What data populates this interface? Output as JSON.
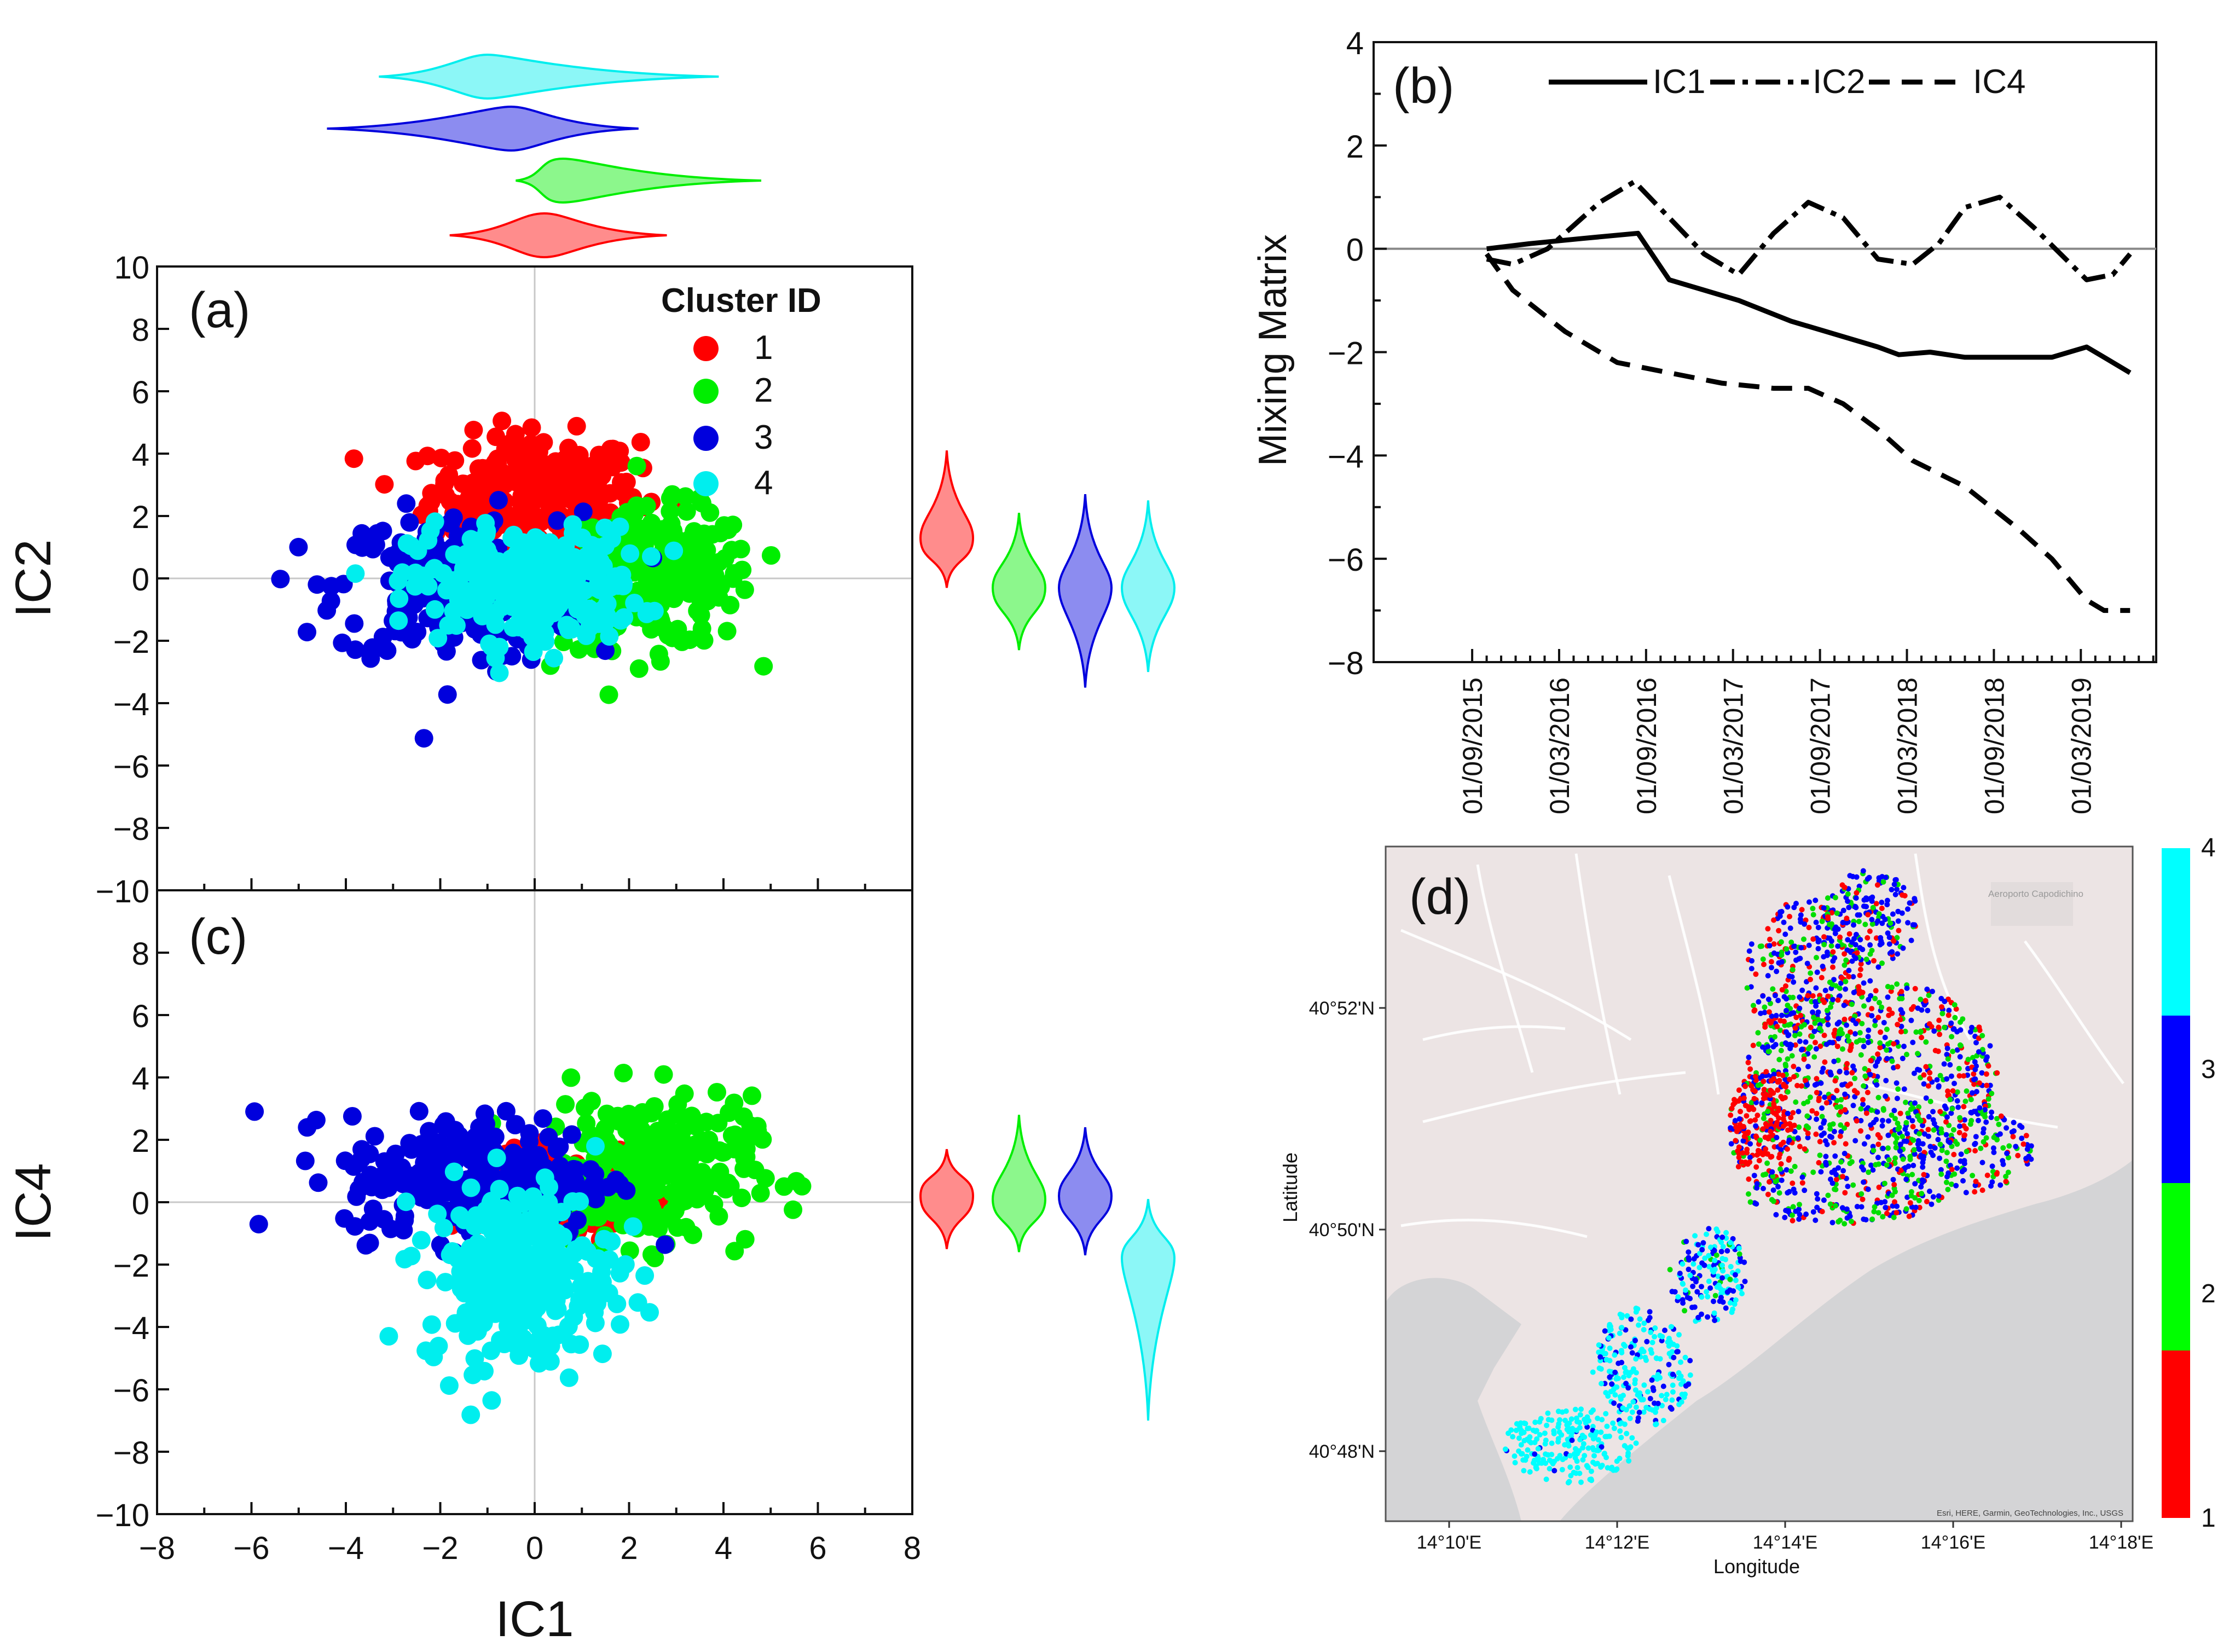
{
  "chart_data": [
    {
      "id": "a",
      "type": "scatter",
      "panel_label": "(a)",
      "xlabel": "",
      "ylabel": "IC2",
      "xlim": [
        -8,
        8
      ],
      "ylim": [
        -10,
        10
      ],
      "yticks": [
        "10",
        "8",
        "6",
        "4",
        "2",
        "0",
        "−2",
        "−4",
        "−6",
        "−8",
        "−10"
      ],
      "legend": {
        "title": "Cluster ID",
        "placement": "top-right",
        "entries": [
          "1",
          "2",
          "3",
          "4"
        ]
      },
      "series": [
        {
          "name": "1",
          "color": "#ff0000",
          "center": [
            0.0,
            2.8
          ],
          "spread": [
            1.1,
            0.9
          ]
        },
        {
          "name": "2",
          "color": "#00ee00",
          "center": [
            2.6,
            0.0
          ],
          "spread": [
            1.0,
            1.1
          ]
        },
        {
          "name": "3",
          "color": "#0000dd",
          "center": [
            -1.6,
            -0.3
          ],
          "spread": [
            1.3,
            1.2
          ]
        },
        {
          "name": "4",
          "color": "#00eeee",
          "center": [
            -0.2,
            -0.2
          ],
          "spread": [
            1.2,
            0.9
          ]
        }
      ],
      "side_violins": [
        {
          "cluster": "1",
          "center": 1.3,
          "range": [
            -0.3,
            4.1
          ]
        },
        {
          "cluster": "2",
          "center": -0.3,
          "range": [
            -2.3,
            2.1
          ]
        },
        {
          "cluster": "3",
          "center": -0.3,
          "range": [
            -3.5,
            2.7
          ]
        },
        {
          "cluster": "4",
          "center": -0.3,
          "range": [
            -3.0,
            2.5
          ]
        }
      ],
      "top_violins": [
        {
          "cluster": "4",
          "center": -1.0,
          "range": [
            -3.3,
            3.9
          ]
        },
        {
          "cluster": "3",
          "center": -0.5,
          "range": [
            -4.4,
            2.2
          ]
        },
        {
          "cluster": "2",
          "center": 0.6,
          "range": [
            -0.4,
            4.8
          ]
        },
        {
          "cluster": "1",
          "center": 0.2,
          "range": [
            -1.8,
            2.8
          ]
        }
      ]
    },
    {
      "id": "c",
      "type": "scatter",
      "panel_label": "(c)",
      "xlabel": "IC1",
      "ylabel": "IC4",
      "xlim": [
        -8,
        8
      ],
      "ylim": [
        -10,
        10
      ],
      "xticks": [
        "−8",
        "−6",
        "−4",
        "−2",
        "0",
        "2",
        "4",
        "6",
        "8"
      ],
      "yticks": [
        "8",
        "6",
        "4",
        "2",
        "0",
        "−2",
        "−4",
        "−6",
        "−8",
        "−10"
      ],
      "series": [
        {
          "name": "1",
          "color": "#ff0000",
          "center": [
            0.5,
            0.3
          ],
          "spread": [
            0.8,
            0.6
          ]
        },
        {
          "name": "2",
          "color": "#00ee00",
          "center": [
            2.4,
            1.0
          ],
          "spread": [
            1.1,
            1.2
          ]
        },
        {
          "name": "3",
          "color": "#0000dd",
          "center": [
            -1.2,
            0.8
          ],
          "spread": [
            1.4,
            1.0
          ]
        },
        {
          "name": "4",
          "color": "#00eeee",
          "center": [
            -0.3,
            -2.3
          ],
          "spread": [
            1.0,
            1.5
          ]
        }
      ],
      "side_violins": [
        {
          "cluster": "1",
          "center": 0.2,
          "range": [
            -1.5,
            1.7
          ]
        },
        {
          "cluster": "2",
          "center": 0.1,
          "range": [
            -1.6,
            2.8
          ]
        },
        {
          "cluster": "3",
          "center": 0.2,
          "range": [
            -1.7,
            2.4
          ]
        },
        {
          "cluster": "4",
          "center": -1.8,
          "range": [
            -7.0,
            0.1
          ]
        }
      ]
    },
    {
      "id": "b",
      "type": "line",
      "panel_label": "(b)",
      "ylabel": "Mixing Matrix",
      "xlabel": "",
      "ylim": [
        -8,
        4
      ],
      "yticks": [
        "4",
        "2",
        "0",
        "−2",
        "−4",
        "−6",
        "−8"
      ],
      "xtick_labels": [
        "01/09/2015",
        "01/03/2016",
        "01/09/2016",
        "01/03/2017",
        "01/09/2017",
        "01/03/2018",
        "01/09/2018",
        "01/03/2019"
      ],
      "x_year_range": [
        2015.1,
        2019.6
      ],
      "legend_entries": [
        "IC1",
        "IC2",
        "IC4"
      ],
      "series": [
        {
          "name": "IC1",
          "style": "solid",
          "x": [
            2015.75,
            2016.0,
            2016.3,
            2016.62,
            2016.8,
            2017.0,
            2017.2,
            2017.5,
            2017.8,
            2018.0,
            2018.12,
            2018.3,
            2018.5,
            2018.8,
            2019.0,
            2019.2,
            2019.3,
            2019.45
          ],
          "y": [
            0.0,
            0.1,
            0.2,
            0.3,
            -0.6,
            -0.8,
            -1.0,
            -1.4,
            -1.7,
            -1.9,
            -2.05,
            -2.0,
            -2.1,
            -2.1,
            -2.1,
            -1.9,
            -2.1,
            -2.4
          ]
        },
        {
          "name": "IC2",
          "style": "dashdot",
          "x": [
            2015.75,
            2015.9,
            2016.1,
            2016.4,
            2016.6,
            2016.8,
            2017.0,
            2017.2,
            2017.4,
            2017.6,
            2017.8,
            2018.0,
            2018.2,
            2018.35,
            2018.5,
            2018.7,
            2018.9,
            2019.05,
            2019.2,
            2019.35,
            2019.45
          ],
          "y": [
            -0.2,
            -0.3,
            0.0,
            0.9,
            1.3,
            0.6,
            -0.1,
            -0.5,
            0.3,
            0.9,
            0.6,
            -0.2,
            -0.3,
            0.1,
            0.8,
            1.0,
            0.4,
            -0.1,
            -0.6,
            -0.5,
            -0.1
          ]
        },
        {
          "name": "IC4",
          "style": "dashed",
          "x": [
            2015.75,
            2015.9,
            2016.2,
            2016.5,
            2016.8,
            2017.1,
            2017.4,
            2017.6,
            2017.8,
            2018.0,
            2018.2,
            2018.5,
            2018.8,
            2019.0,
            2019.2,
            2019.3,
            2019.45
          ],
          "y": [
            -0.1,
            -0.8,
            -1.6,
            -2.2,
            -2.4,
            -2.6,
            -2.7,
            -2.7,
            -3.0,
            -3.5,
            -4.1,
            -4.6,
            -5.4,
            -6.0,
            -6.8,
            -7.0,
            -7.0
          ]
        }
      ]
    },
    {
      "id": "d",
      "type": "map",
      "panel_label": "(d)",
      "xlabel": "Longitude",
      "ylabel": "Latitude",
      "xtick_labels": [
        "14°10'E",
        "14°12'E",
        "14°14'E",
        "14°16'E",
        "14°18'E"
      ],
      "ytick_labels": [
        "40°52'N",
        "40°50'N",
        "40°48'N"
      ],
      "map_place_label": "Aeroporto Capodichino",
      "attribution": "Esri, HERE, Garmin, GeoTechnologies, Inc., USGS",
      "colorbar": {
        "labels": [
          "4",
          "3",
          "2",
          "1"
        ],
        "colors": [
          "#00ffff",
          "#0000ff",
          "#00ff00",
          "#ff0000"
        ]
      }
    }
  ]
}
